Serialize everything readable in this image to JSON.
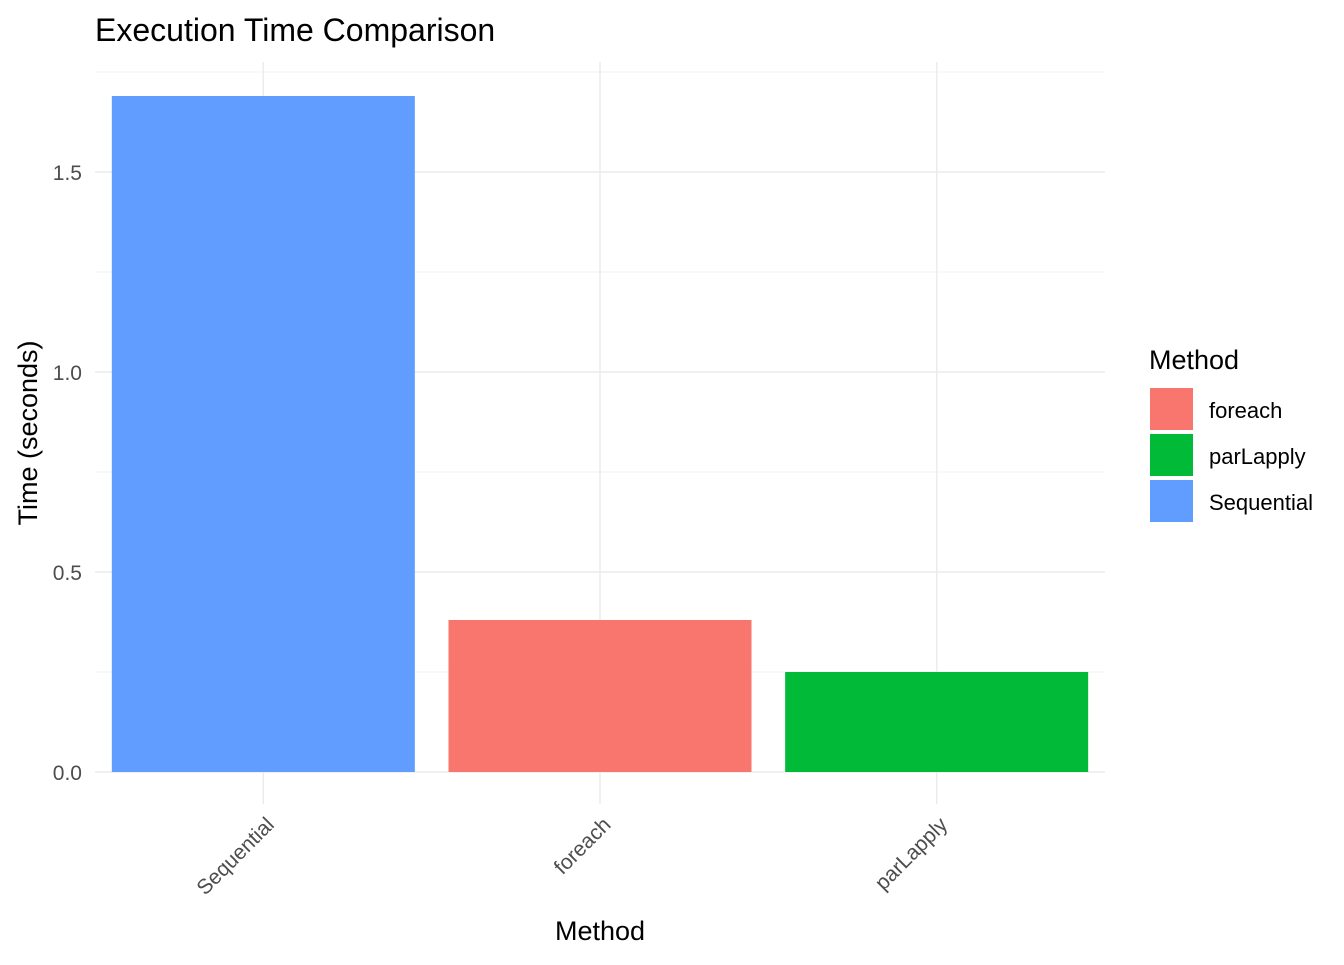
{
  "chart_data": {
    "type": "bar",
    "title": "Execution Time Comparison",
    "xlabel": "Method",
    "ylabel": "Time (seconds)",
    "categories": [
      "Sequential",
      "foreach",
      "parLapply"
    ],
    "values": [
      1.69,
      0.38,
      0.25
    ],
    "bar_colors": [
      "#619CFF",
      "#F8766D",
      "#00BA38"
    ],
    "ylim": [
      0,
      1.75
    ],
    "y_ticks": [
      0.0,
      0.5,
      1.0,
      1.5
    ],
    "y_tick_labels": [
      "0.0",
      "0.5",
      "1.0",
      "1.5"
    ],
    "grid": true,
    "legend": {
      "title": "Method",
      "position": "right",
      "entries": [
        {
          "label": "foreach",
          "color": "#F8766D"
        },
        {
          "label": "parLapply",
          "color": "#00BA38"
        },
        {
          "label": "Sequential",
          "color": "#619CFF"
        }
      ]
    }
  }
}
